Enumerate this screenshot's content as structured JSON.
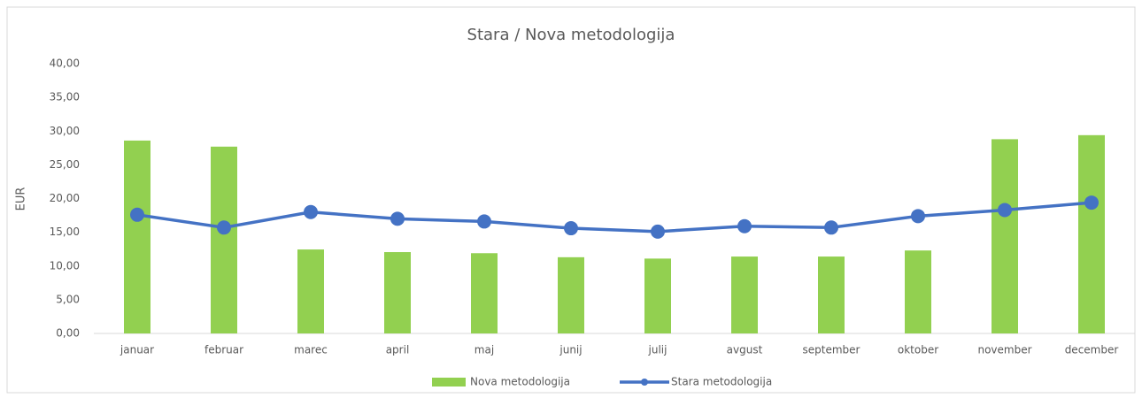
{
  "chart_data": {
    "type": "combo",
    "title": "Stara / Nova metodologija",
    "y_label": "EUR",
    "categories": [
      "januar",
      "februar",
      "marec",
      "april",
      "maj",
      "junij",
      "julij",
      "avgust",
      "september",
      "oktober",
      "november",
      "december"
    ],
    "series": [
      {
        "name": "Nova metodologija",
        "type": "bar",
        "color": "#92d050",
        "values": [
          28.6,
          27.7,
          12.45,
          12.06,
          11.9,
          11.3,
          11.1,
          11.4,
          11.4,
          12.3,
          28.8,
          29.4
        ]
      },
      {
        "name": "Stara metodologija",
        "type": "line",
        "color": "#4472c4",
        "values": [
          17.6,
          15.7,
          18.0,
          17.0,
          16.6,
          15.6,
          15.1,
          15.9,
          15.7,
          17.4,
          18.3,
          19.4
        ]
      }
    ],
    "ylim": [
      0,
      40
    ],
    "yticks": [
      {
        "value": 0,
        "label": "0,00"
      },
      {
        "value": 5,
        "label": "5,00"
      },
      {
        "value": 10,
        "label": "10,00"
      },
      {
        "value": 15,
        "label": "15,00"
      },
      {
        "value": 20,
        "label": "20,00"
      },
      {
        "value": 25,
        "label": "25,00"
      },
      {
        "value": 30,
        "label": "30,00"
      },
      {
        "value": 35,
        "label": "35,00"
      },
      {
        "value": 40,
        "label": "40,00"
      }
    ],
    "grid": false,
    "legend": "bottom"
  }
}
